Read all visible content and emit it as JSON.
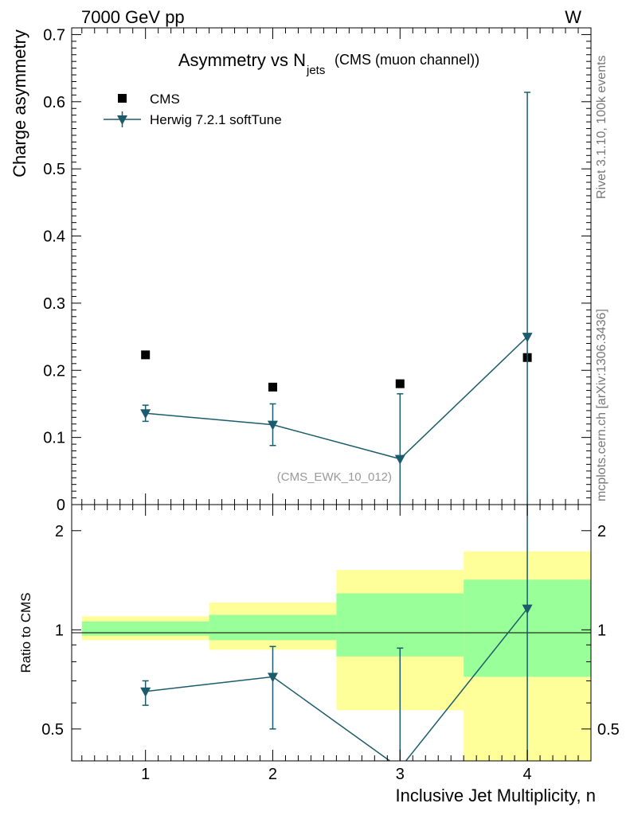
{
  "header": {
    "left": "7000 GeV pp",
    "right": "W"
  },
  "side_labels": {
    "rivet": "Rivet 3.1.10,  100k events",
    "mcplots": "mcplots.cern.ch [arXiv:1306.3436]"
  },
  "chart_data": [
    {
      "type": "scatter",
      "title_main": "Asymmetry vs N",
      "title_sub": "jets",
      "title_extra": "(CMS (muon channel))",
      "ylabel": "Charge asymmetry",
      "ylim": [
        0,
        0.71
      ],
      "yticks": [
        "0",
        "0.1",
        "0.2",
        "0.3",
        "0.4",
        "0.5",
        "0.6",
        "0.7"
      ],
      "analysis_label": "(CMS_EWK_10_012)",
      "legend_position": "top-left",
      "series": [
        {
          "name": "CMS",
          "marker": "square",
          "color": "#000000",
          "x": [
            1,
            2,
            3,
            4
          ],
          "y": [
            0.223,
            0.175,
            0.18,
            0.219
          ]
        },
        {
          "name": "Herwig 7.2.1 softTune",
          "marker": "triangle-down",
          "color": "#1a5c6b",
          "x": [
            1,
            2,
            3,
            4
          ],
          "y": [
            0.136,
            0.119,
            0.068,
            0.25
          ],
          "yerr_low": [
            0.012,
            0.031,
            0.07,
            0.25
          ],
          "yerr_high": [
            0.012,
            0.031,
            0.097,
            0.364
          ]
        }
      ]
    },
    {
      "type": "ratio",
      "ylabel": "Ratio to CMS",
      "xlabel": "Inclusive Jet Multiplicity, n",
      "xlim": [
        0.42,
        4.5
      ],
      "xticks": [
        "1",
        "2",
        "3",
        "4"
      ],
      "ylim": [
        0.4,
        2.4
      ],
      "yscale": "log",
      "yticks": [
        "0.5",
        "1",
        "2"
      ],
      "bands": {
        "bin_edges": [
          0.5,
          1.5,
          2.5,
          3.5,
          4.5
        ],
        "yellow": [
          [
            0.93,
            1.1
          ],
          [
            0.87,
            1.21
          ],
          [
            0.57,
            1.52
          ],
          [
            0.2,
            1.73
          ]
        ],
        "green": [
          [
            0.96,
            1.06
          ],
          [
            0.93,
            1.11
          ],
          [
            0.83,
            1.29
          ],
          [
            0.72,
            1.42
          ]
        ],
        "yellow_color": "#ffff99",
        "green_color": "#99ff99"
      },
      "series": {
        "name": "Herwig 7.2.1 softTune",
        "color": "#1a5c6b",
        "x": [
          1,
          2,
          3,
          4
        ],
        "y": [
          0.65,
          0.72,
          0.38,
          1.16
        ],
        "yerr_low": [
          0.06,
          0.22,
          0.38,
          1.16
        ],
        "yerr_high": [
          0.05,
          0.17,
          0.5,
          1.24
        ]
      }
    }
  ]
}
